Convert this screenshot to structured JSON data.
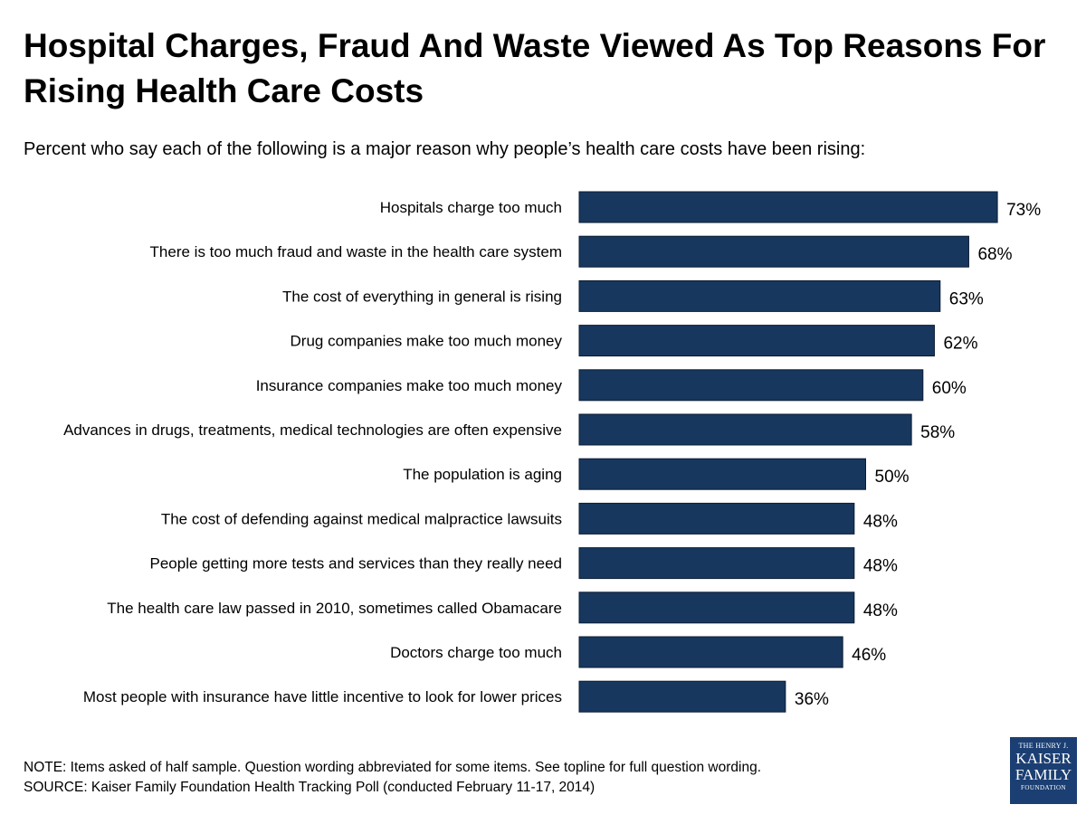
{
  "title": "Hospital Charges, Fraud And Waste Viewed As Top Reasons For Rising Health Care Costs",
  "subtitle": "Percent who say each of the following is a major reason why people’s health care costs have been rising:",
  "colors": {
    "bar": "#17375e",
    "bar_edge": "#0b1c33",
    "logo_bg": "#1b3f73"
  },
  "chart_data": {
    "type": "bar",
    "orientation": "horizontal",
    "title": "Hospital Charges, Fraud And Waste Viewed As Top Reasons For Rising Health Care Costs",
    "xlabel": "",
    "ylabel": "",
    "xlim": [
      0,
      100
    ],
    "grid": false,
    "legend": "none",
    "value_suffix": "%",
    "categories": [
      "Hospitals charge too much",
      "There is too much fraud and waste in the health care system",
      "The cost of everything in general is rising",
      "Drug companies make too much money",
      "Insurance companies make too much money",
      "Advances in drugs, treatments, medical technologies are often expensive",
      "The population is aging",
      "The cost of defending against medical malpractice lawsuits",
      "People getting more tests and services than they really need",
      "The health care law passed in 2010, sometimes called Obamacare",
      "Doctors charge too much",
      "Most people with insurance have little incentive to look for lower prices"
    ],
    "values": [
      73,
      68,
      63,
      62,
      60,
      58,
      50,
      48,
      48,
      48,
      46,
      36
    ]
  },
  "note_line1": "NOTE: Items asked of half sample. Question wording abbreviated for some items. See topline for full question wording.",
  "note_line2": "SOURCE: Kaiser Family Foundation Health Tracking Poll (conducted February 11-17, 2014)",
  "logo": {
    "line1": "THE HENRY J.",
    "line2": "KAISER",
    "line3": "FAMILY",
    "line4": "FOUNDATION"
  }
}
